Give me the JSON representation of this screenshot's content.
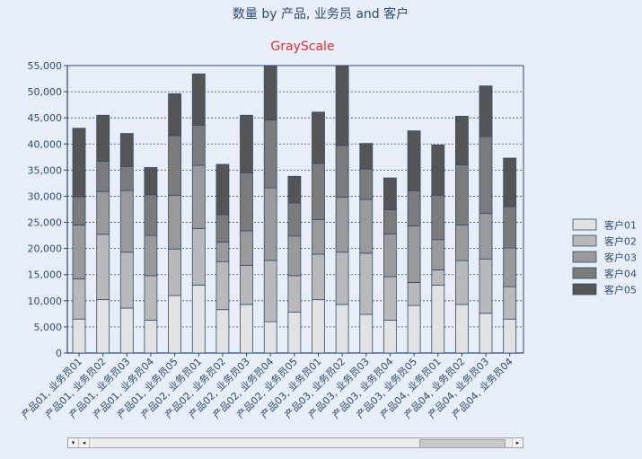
{
  "chart_data": {
    "type": "bar",
    "stacked": true,
    "title": "数量 by 产品, 业务员 and 客户",
    "subtitle": "GrayScale",
    "ylim": [
      0,
      55000
    ],
    "yticks": [
      "0",
      "5,000",
      "10,000",
      "15,000",
      "20,000",
      "25,000",
      "30,000",
      "35,000",
      "40,000",
      "45,000",
      "50,000",
      "55,000"
    ],
    "grid": true,
    "legend_position": "right",
    "categories": [
      "产品01, 业务员01",
      "产品01, 业务员02",
      "产品01, 业务员03",
      "产品01, 业务员04",
      "产品01, 业务员05",
      "产品02, 业务员01",
      "产品02, 业务员02",
      "产品02, 业务员03",
      "产品02, 业务员04",
      "产品02, 业务员05",
      "产品03, 业务员01",
      "产品03, 业务员02",
      "产品03, 业务员03",
      "产品03, 业务员04",
      "产品03, 业务员05",
      "产品04, 业务员01",
      "产品04, 业务员02",
      "产品04, 业务员03",
      "产品04, 业务员04"
    ],
    "series": [
      {
        "name": "客户01",
        "color": "#e2e2e2",
        "values": [
          6500,
          10200,
          8600,
          6300,
          11000,
          13000,
          8300,
          9300,
          6000,
          7800,
          10200,
          9300,
          7400,
          6300,
          9100,
          13000,
          9300,
          7600,
          6500
        ]
      },
      {
        "name": "客户02",
        "color": "#b9b9b9",
        "values": [
          7700,
          12500,
          10700,
          8500,
          8900,
          10800,
          9200,
          7500,
          11700,
          7000,
          8700,
          10000,
          11700,
          8300,
          4400,
          2900,
          8400,
          10400,
          6200
        ]
      },
      {
        "name": "客户03",
        "color": "#9a9a9a",
        "values": [
          10300,
          8200,
          11800,
          7700,
          10300,
          12100,
          3700,
          6600,
          13900,
          7600,
          6600,
          10500,
          10300,
          8200,
          10800,
          5800,
          6800,
          8700,
          7400
        ]
      },
      {
        "name": "客户04",
        "color": "#7b7b7b",
        "values": [
          5400,
          5800,
          4600,
          7800,
          11400,
          7700,
          5300,
          11100,
          13000,
          6300,
          10800,
          9900,
          5800,
          4600,
          6700,
          8500,
          11500,
          14700,
          7900
        ]
      },
      {
        "name": "客户05",
        "color": "#555555",
        "values": [
          13100,
          8800,
          6300,
          5200,
          8000,
          9800,
          9600,
          11000,
          10300,
          5100,
          9800,
          15300,
          4900,
          6100,
          11500,
          9600,
          9300,
          9700,
          9300
        ]
      }
    ]
  },
  "scrollbar": {
    "left_arrow": "◂",
    "right_arrow": "▸",
    "dropdown_arrow": "▾",
    "thumb_start": 0.78,
    "thumb_end": 0.98
  }
}
